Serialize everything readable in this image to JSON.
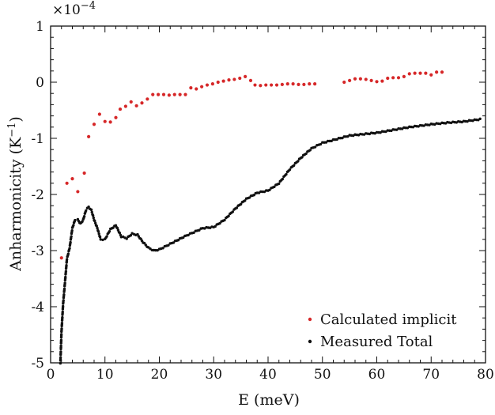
{
  "chart_data": {
    "type": "scatter",
    "title": "",
    "xlabel": "E (meV)",
    "ylabel": "Anharmonicity (K",
    "ylabel_sup": "−1",
    "ylabel_close": ")",
    "y_multiplier": "×10",
    "y_multiplier_exp": "−4",
    "xlim": [
      0,
      80
    ],
    "ylim": [
      -5,
      1
    ],
    "x_ticks": [
      0,
      10,
      20,
      30,
      40,
      50,
      60,
      70,
      80
    ],
    "x_tick_labels": [
      "0",
      "10",
      "20",
      "30",
      "40",
      "50",
      "60",
      "70",
      "80"
    ],
    "y_ticks": [
      -5,
      -4,
      -3,
      -2,
      -1,
      0,
      1
    ],
    "y_tick_labels": [
      "-5",
      "-4",
      "-3",
      "-2",
      "-1",
      "0",
      "1"
    ],
    "grid": false,
    "legend_position": "bottom-right",
    "series": [
      {
        "name": "Calculated implicit",
        "color": "#d62728",
        "points": [
          [
            2,
            -3.13
          ],
          [
            3,
            -1.8
          ],
          [
            4,
            -1.72
          ],
          [
            5,
            -1.95
          ],
          [
            6.2,
            -1.62
          ],
          [
            7,
            -0.97
          ],
          [
            8,
            -0.75
          ],
          [
            9,
            -0.57
          ],
          [
            10,
            -0.7
          ],
          [
            11,
            -0.71
          ],
          [
            12,
            -0.63
          ],
          [
            12.8,
            -0.48
          ],
          [
            13.8,
            -0.43
          ],
          [
            14.8,
            -0.35
          ],
          [
            15.8,
            -0.42
          ],
          [
            16.8,
            -0.37
          ],
          [
            17.8,
            -0.3
          ],
          [
            18.8,
            -0.22
          ],
          [
            19.8,
            -0.22
          ],
          [
            20.8,
            -0.22
          ],
          [
            21.8,
            -0.23
          ],
          [
            22.8,
            -0.22
          ],
          [
            23.8,
            -0.22
          ],
          [
            24.8,
            -0.22
          ],
          [
            25.8,
            -0.1
          ],
          [
            26.8,
            -0.12
          ],
          [
            27.8,
            -0.08
          ],
          [
            28.8,
            -0.05
          ],
          [
            29.8,
            -0.03
          ],
          [
            30.8,
            0
          ],
          [
            31.8,
            0.02
          ],
          [
            32.8,
            0.04
          ],
          [
            33.8,
            0.05
          ],
          [
            34.8,
            0.07
          ],
          [
            35.8,
            0.1
          ],
          [
            36.8,
            0.03
          ],
          [
            37.6,
            -0.05
          ],
          [
            38.6,
            -0.06
          ],
          [
            39.6,
            -0.05
          ],
          [
            40.6,
            -0.05
          ],
          [
            41.6,
            -0.05
          ],
          [
            42.6,
            -0.04
          ],
          [
            43.6,
            -0.03
          ],
          [
            44.6,
            -0.03
          ],
          [
            45.6,
            -0.04
          ],
          [
            46.6,
            -0.04
          ],
          [
            47.6,
            -0.03
          ],
          [
            48.6,
            -0.03
          ],
          [
            54,
            0
          ],
          [
            55,
            0.03
          ],
          [
            56,
            0.06
          ],
          [
            57,
            0.06
          ],
          [
            58,
            0.05
          ],
          [
            59,
            0.03
          ],
          [
            60,
            0.01
          ],
          [
            61,
            0.02
          ],
          [
            62,
            0.07
          ],
          [
            63,
            0.08
          ],
          [
            64,
            0.08
          ],
          [
            65,
            0.1
          ],
          [
            66,
            0.15
          ],
          [
            67,
            0.16
          ],
          [
            68,
            0.16
          ],
          [
            69,
            0.16
          ],
          [
            70,
            0.13
          ],
          [
            71,
            0.18
          ],
          [
            72,
            0.18
          ]
        ]
      },
      {
        "name": "Measured Total",
        "color": "#111111",
        "curve_knots": [
          [
            1.8,
            -5.0
          ],
          [
            2.0,
            -4.45
          ],
          [
            2.3,
            -3.95
          ],
          [
            2.7,
            -3.5
          ],
          [
            3.0,
            -3.15
          ],
          [
            3.5,
            -2.95
          ],
          [
            4.0,
            -2.6
          ],
          [
            4.5,
            -2.45
          ],
          [
            5.0,
            -2.45
          ],
          [
            5.5,
            -2.52
          ],
          [
            6.0,
            -2.45
          ],
          [
            6.5,
            -2.28
          ],
          [
            7.0,
            -2.22
          ],
          [
            7.5,
            -2.28
          ],
          [
            8.0,
            -2.45
          ],
          [
            8.6,
            -2.6
          ],
          [
            9.2,
            -2.8
          ],
          [
            10.0,
            -2.8
          ],
          [
            11.0,
            -2.62
          ],
          [
            12.0,
            -2.55
          ],
          [
            13.0,
            -2.75
          ],
          [
            14.0,
            -2.78
          ],
          [
            15.0,
            -2.7
          ],
          [
            16.0,
            -2.72
          ],
          [
            17.0,
            -2.85
          ],
          [
            18.0,
            -2.95
          ],
          [
            19.0,
            -3.0
          ],
          [
            20.0,
            -2.98
          ],
          [
            22.0,
            -2.88
          ],
          [
            25.0,
            -2.73
          ],
          [
            28.0,
            -2.6
          ],
          [
            30.0,
            -2.58
          ],
          [
            32.0,
            -2.45
          ],
          [
            34.0,
            -2.25
          ],
          [
            36.0,
            -2.08
          ],
          [
            38.0,
            -1.97
          ],
          [
            40.0,
            -1.93
          ],
          [
            42.0,
            -1.8
          ],
          [
            44.0,
            -1.55
          ],
          [
            46.0,
            -1.35
          ],
          [
            48.0,
            -1.18
          ],
          [
            50.0,
            -1.08
          ],
          [
            52.0,
            -1.03
          ],
          [
            55.0,
            -0.95
          ],
          [
            58.0,
            -0.92
          ],
          [
            60.0,
            -0.9
          ],
          [
            63.0,
            -0.85
          ],
          [
            66.0,
            -0.8
          ],
          [
            70.0,
            -0.75
          ],
          [
            73.0,
            -0.72
          ],
          [
            76.0,
            -0.7
          ],
          [
            79.0,
            -0.66
          ]
        ]
      }
    ]
  }
}
